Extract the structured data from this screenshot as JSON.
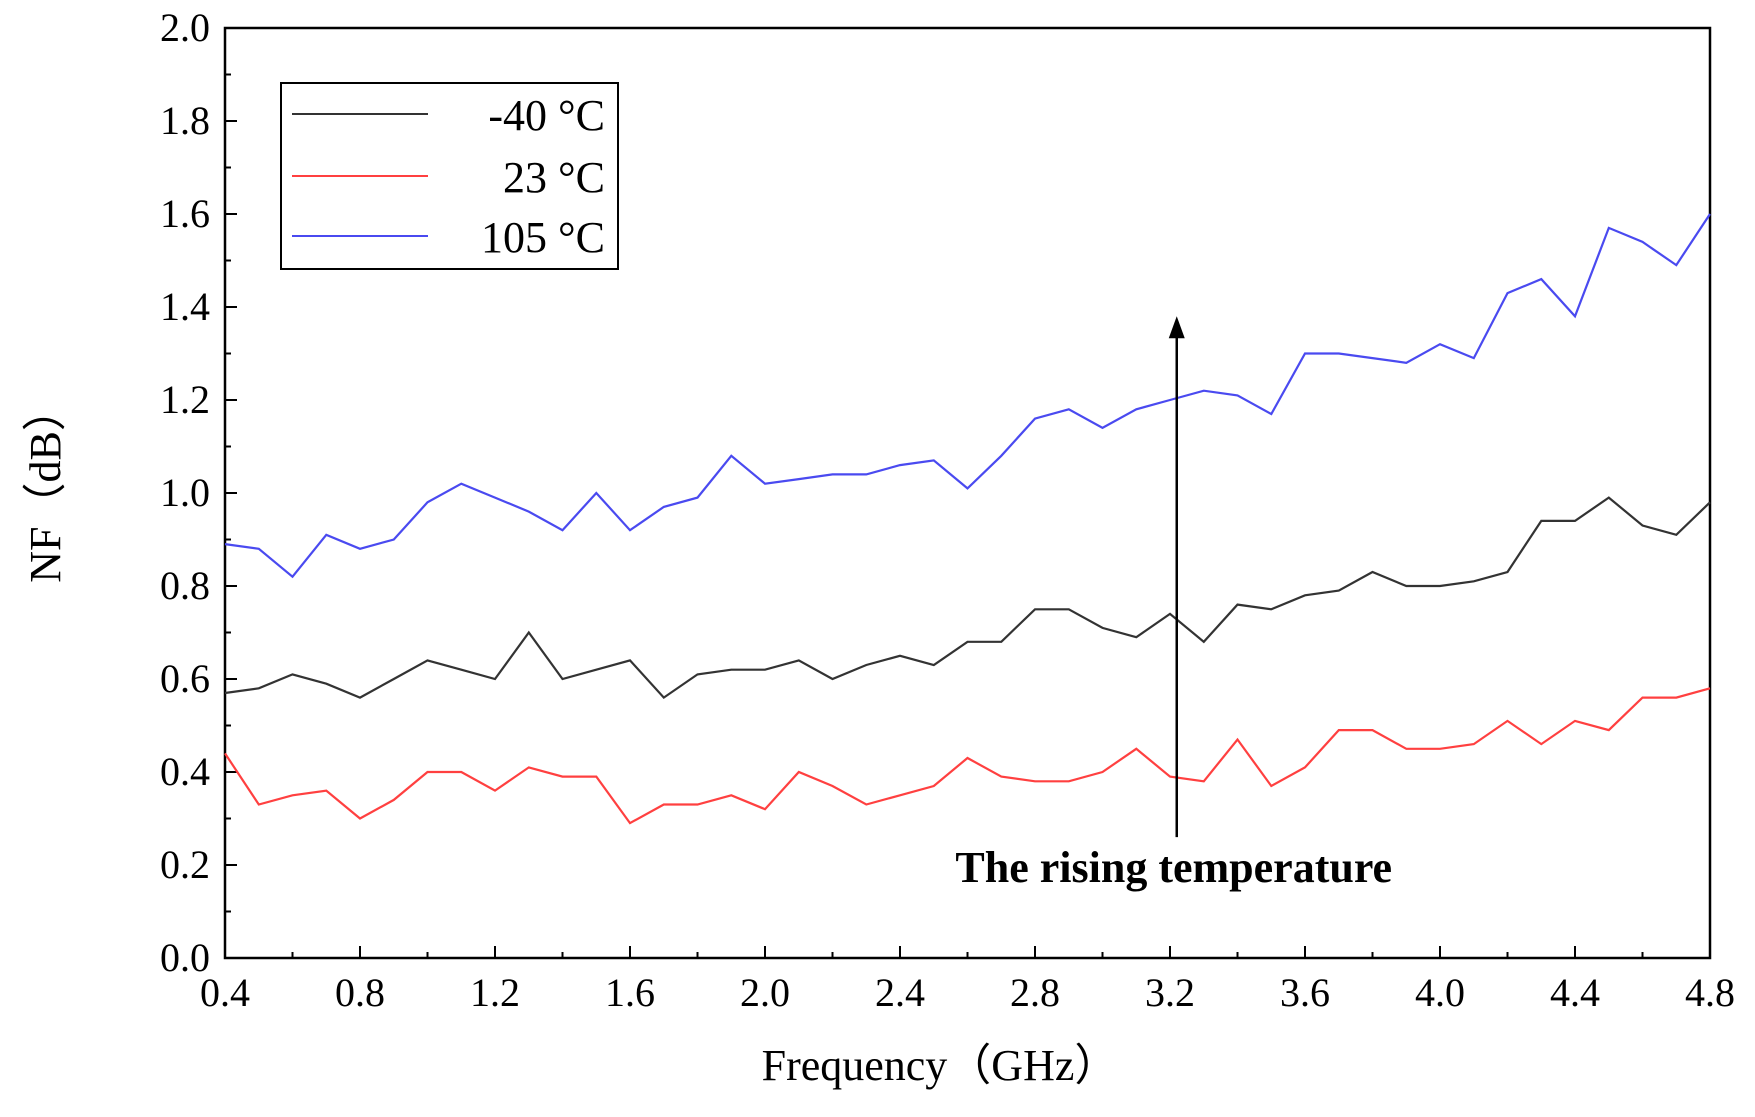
{
  "chart_data": {
    "type": "line",
    "title": "",
    "xlabel": "Frequency（GHz）",
    "ylabel": "NF（dB）",
    "xlim": [
      0.4,
      4.8
    ],
    "ylim": [
      0.0,
      2.0
    ],
    "xticks": [
      "0.4",
      "0.8",
      "1.2",
      "1.6",
      "2.0",
      "2.4",
      "2.8",
      "3.2",
      "3.6",
      "4.0",
      "4.4",
      "4.8"
    ],
    "yticks": [
      "0.0",
      "0.2",
      "0.4",
      "0.6",
      "0.8",
      "1.0",
      "1.2",
      "1.4",
      "1.6",
      "1.8",
      "2.0"
    ],
    "grid": false,
    "legend_position": "top-left",
    "x": [
      0.4,
      0.5,
      0.6,
      0.7,
      0.8,
      0.9,
      1.0,
      1.1,
      1.2,
      1.3,
      1.4,
      1.5,
      1.6,
      1.7,
      1.8,
      1.9,
      2.0,
      2.1,
      2.2,
      2.3,
      2.4,
      2.5,
      2.6,
      2.7,
      2.8,
      2.9,
      3.0,
      3.1,
      3.2,
      3.3,
      3.4,
      3.5,
      3.6,
      3.7,
      3.8,
      3.9,
      4.0,
      4.1,
      4.2,
      4.3,
      4.4,
      4.5,
      4.6,
      4.7,
      4.8
    ],
    "series": [
      {
        "name": "-40 °C",
        "color": "#333333",
        "values": [
          0.57,
          0.58,
          0.61,
          0.59,
          0.56,
          0.6,
          0.64,
          0.62,
          0.6,
          0.7,
          0.6,
          0.62,
          0.64,
          0.56,
          0.61,
          0.62,
          0.62,
          0.64,
          0.6,
          0.63,
          0.65,
          0.63,
          0.68,
          0.68,
          0.75,
          0.75,
          0.71,
          0.69,
          0.74,
          0.68,
          0.76,
          0.75,
          0.78,
          0.79,
          0.83,
          0.8,
          0.8,
          0.81,
          0.83,
          0.94,
          0.94,
          0.99,
          0.93,
          0.91,
          0.98
        ]
      },
      {
        "name": "23 °C",
        "color": "#ff4040",
        "values": [
          0.44,
          0.33,
          0.35,
          0.36,
          0.3,
          0.34,
          0.4,
          0.4,
          0.36,
          0.41,
          0.39,
          0.39,
          0.29,
          0.33,
          0.33,
          0.35,
          0.32,
          0.4,
          0.37,
          0.33,
          0.35,
          0.37,
          0.43,
          0.39,
          0.38,
          0.38,
          0.4,
          0.45,
          0.39,
          0.38,
          0.47,
          0.37,
          0.41,
          0.49,
          0.49,
          0.45,
          0.45,
          0.46,
          0.51,
          0.46,
          0.51,
          0.49,
          0.56,
          0.56,
          0.58
        ]
      },
      {
        "name": "105 °C",
        "color": "#4a4af0",
        "values": [
          0.89,
          0.88,
          0.82,
          0.91,
          0.88,
          0.9,
          0.98,
          1.02,
          0.99,
          0.96,
          0.92,
          1.0,
          0.92,
          0.97,
          0.99,
          1.08,
          1.02,
          1.03,
          1.04,
          1.04,
          1.06,
          1.07,
          1.01,
          1.08,
          1.16,
          1.18,
          1.14,
          1.18,
          1.2,
          1.22,
          1.21,
          1.17,
          1.3,
          1.3,
          1.29,
          1.28,
          1.32,
          1.29,
          1.43,
          1.46,
          1.38,
          1.57,
          1.54,
          1.49,
          1.6
        ]
      }
    ],
    "annotations": [
      {
        "text": "The rising temperature",
        "arrow_x": 3.22,
        "arrow_from_y": 0.26,
        "arrow_to_y": 1.38,
        "text_x": 3.22,
        "text_y": 0.17
      }
    ]
  }
}
